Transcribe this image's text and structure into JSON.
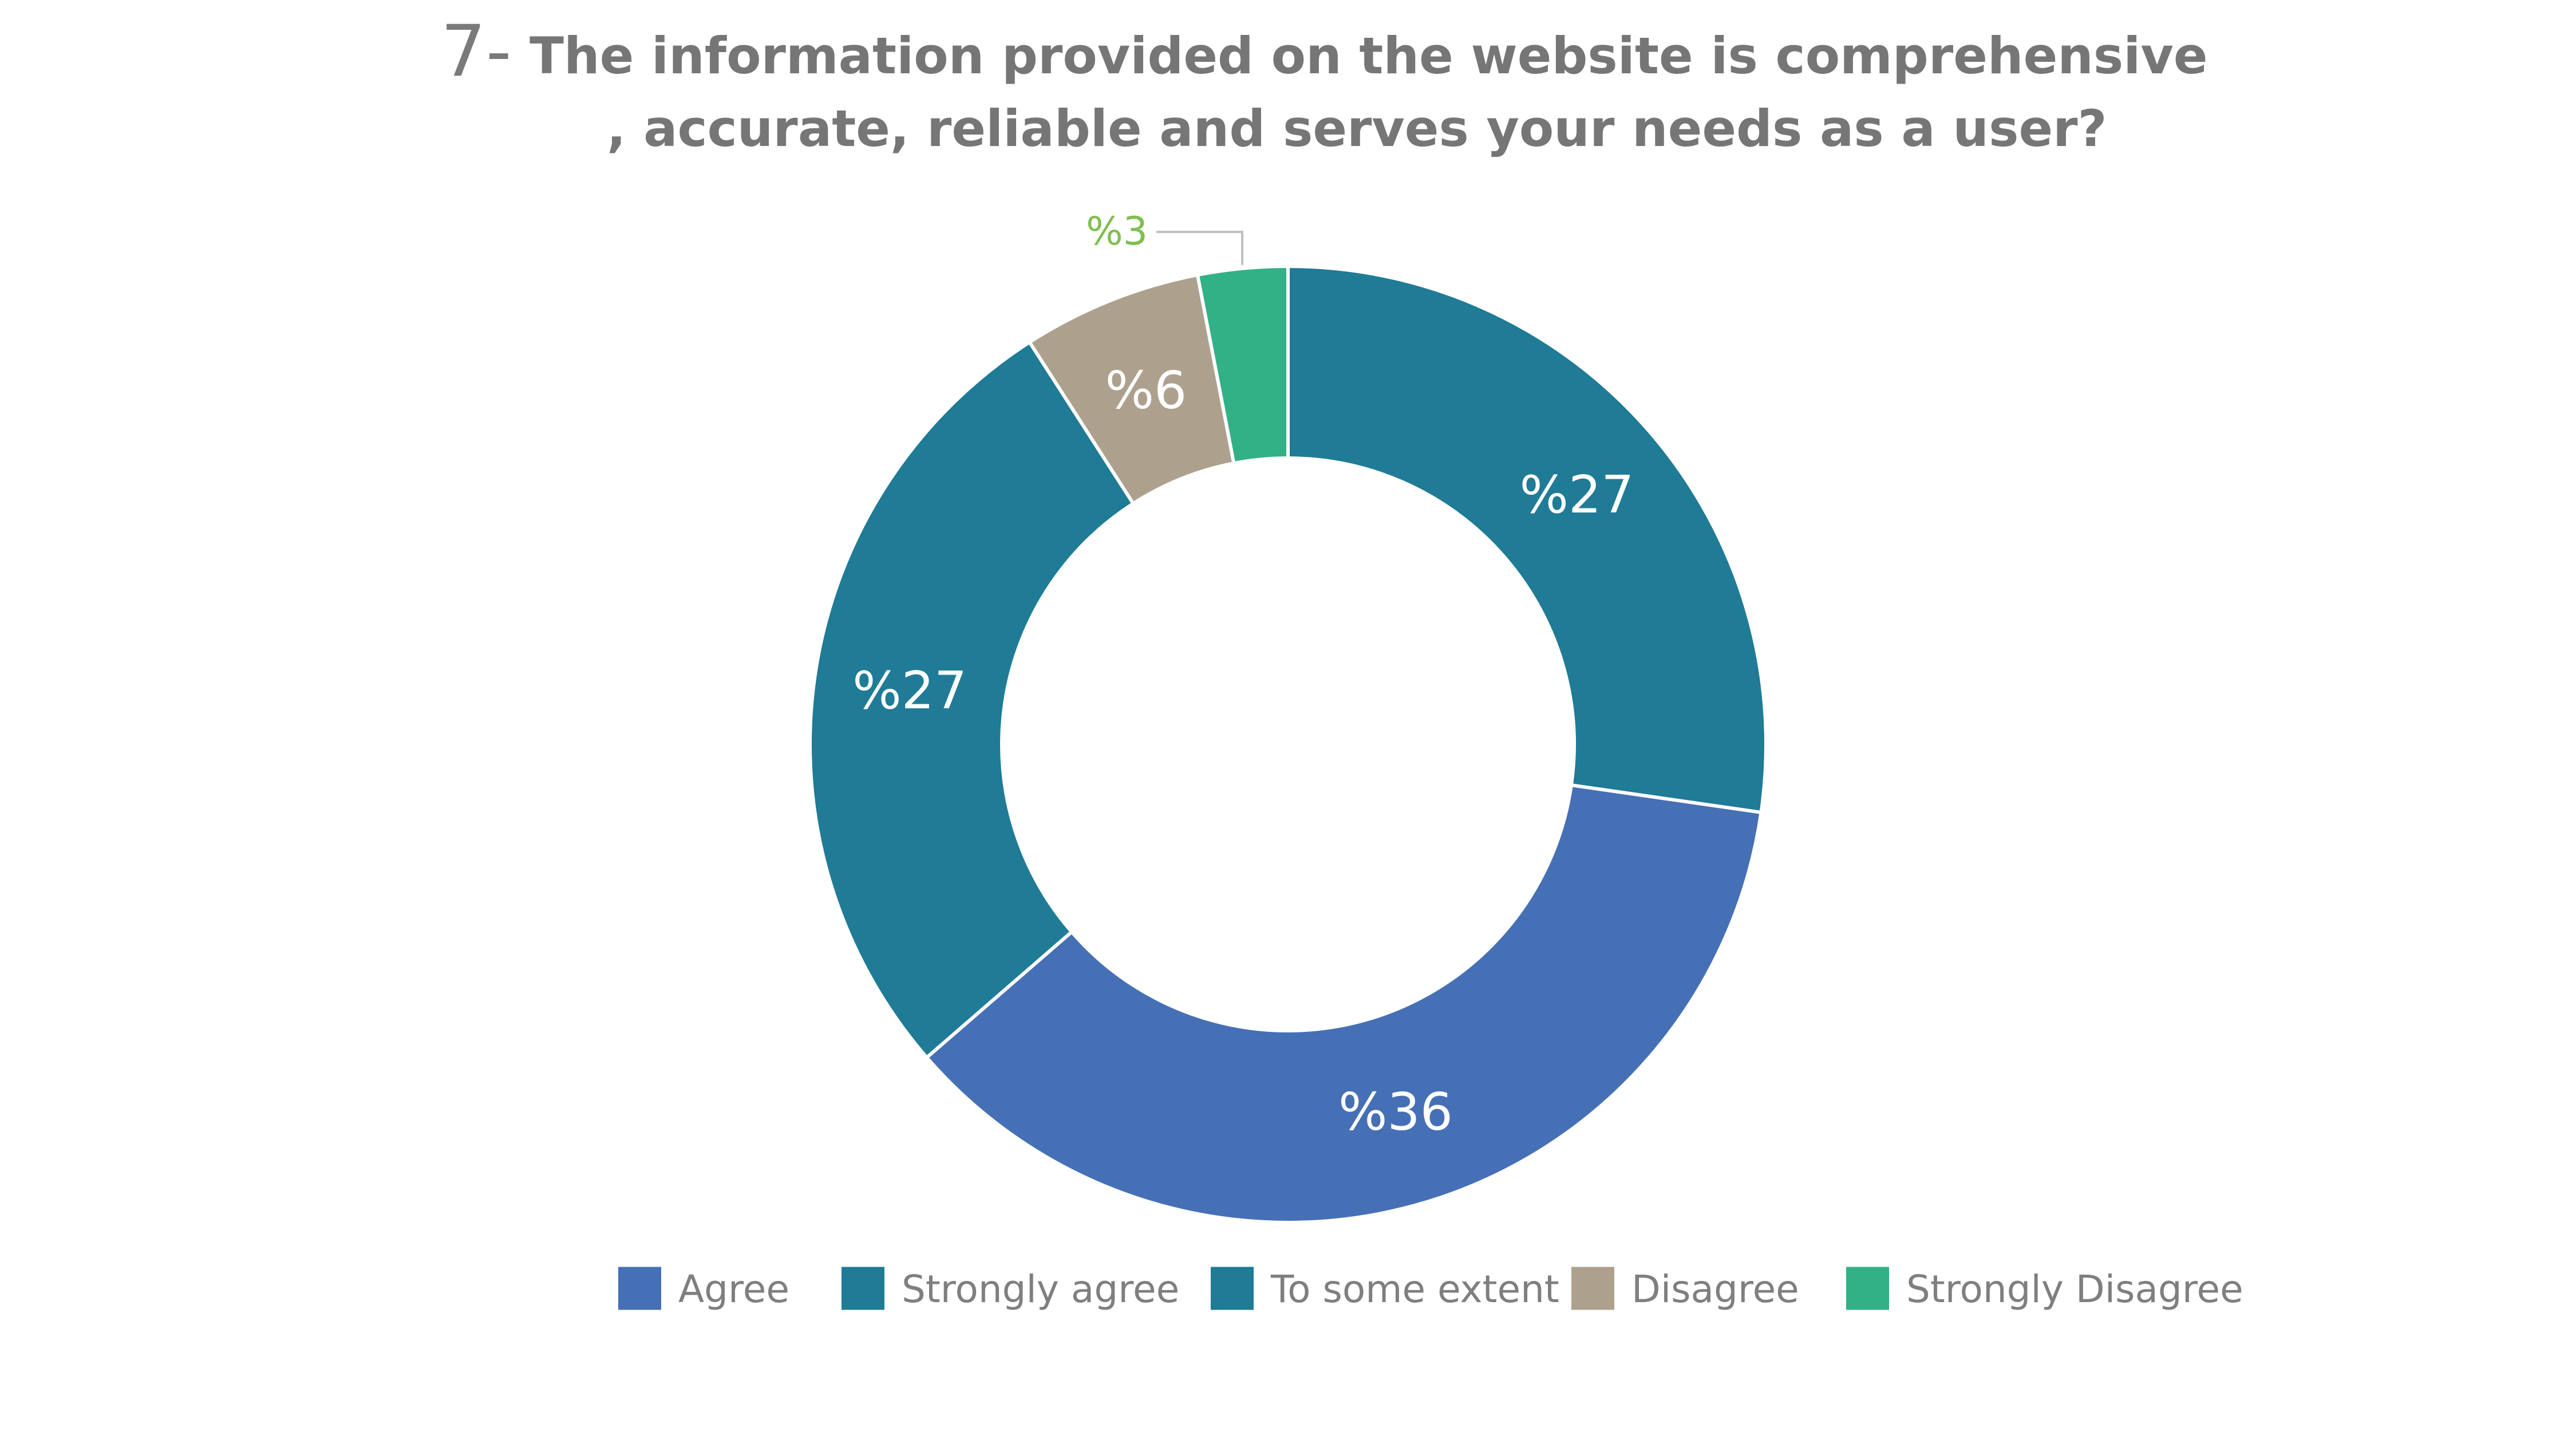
{
  "chart_data": {
    "type": "pie",
    "style": "donut",
    "title_number": "7-",
    "title_lines": [
      "The information provided on the website is comprehensive",
      ", accurate, reliable and serves your needs as a user?"
    ],
    "slices": [
      {
        "name": "Agree",
        "value": 36,
        "label": "%36",
        "color": "#4670b5"
      },
      {
        "name": "Strongly agree",
        "value": 27,
        "label": "%27",
        "color": "#1f7b96"
      },
      {
        "name": "To some extent",
        "value": 27,
        "label": "%27",
        "color": "#1f7b96"
      },
      {
        "name": "Disagree",
        "value": 6,
        "label": "%6",
        "color": "#ada18e"
      },
      {
        "name": "Strongly Disagree",
        "value": 3,
        "label": "%3",
        "color": "#32b086",
        "label_color": "#7fbf4e"
      }
    ],
    "legend_position": "bottom"
  }
}
